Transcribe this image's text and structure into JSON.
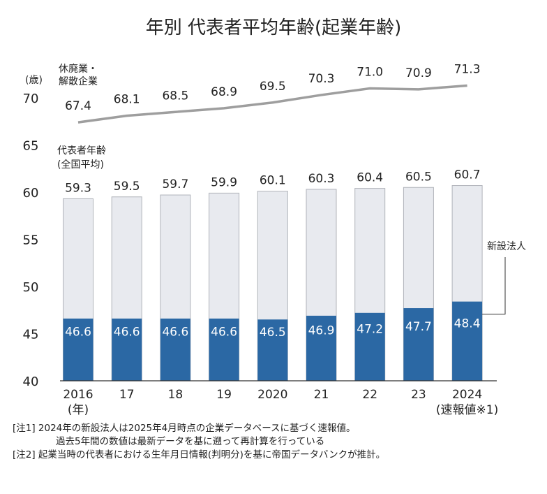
{
  "chart_data": {
    "type": "bar",
    "title": "年別 代表者平均年齢(起業年齢)",
    "y_unit": "(歳)",
    "ylim": [
      40,
      72
    ],
    "yticks": [
      40,
      45,
      50,
      55,
      60,
      65,
      70
    ],
    "categories": [
      "2016",
      "17",
      "18",
      "19",
      "2020",
      "21",
      "22",
      "23",
      "2024"
    ],
    "category_sublabels": [
      "(年)",
      "",
      "",
      "",
      "",
      "",
      "",
      "",
      "(速報値※1)"
    ],
    "series": [
      {
        "name": "休廃業・解散企業",
        "label_lines": [
          "休廃業・",
          "解散企業"
        ],
        "type": "line",
        "color": "#9e9e9e",
        "values": [
          67.4,
          68.1,
          68.5,
          68.9,
          69.5,
          70.3,
          71.0,
          70.9,
          71.3
        ],
        "labels": [
          "67.4",
          "68.1",
          "68.5",
          "68.9",
          "69.5",
          "70.3",
          "71.0",
          "70.9",
          "71.3"
        ]
      },
      {
        "name": "代表者年齢(全国平均)",
        "label_lines": [
          "代表者年齢",
          "(全国平均)"
        ],
        "type": "bar",
        "color": "#e8eaef",
        "stroke": "#b0b3ba",
        "values": [
          59.3,
          59.5,
          59.7,
          59.9,
          60.1,
          60.3,
          60.4,
          60.5,
          60.7
        ],
        "labels": [
          "59.3",
          "59.5",
          "59.7",
          "59.9",
          "60.1",
          "60.3",
          "60.4",
          "60.5",
          "60.7"
        ]
      },
      {
        "name": "新設法人",
        "label_lines": [
          "新設法人"
        ],
        "type": "bar",
        "color": "#2b68a4",
        "values": [
          46.6,
          46.6,
          46.6,
          46.6,
          46.5,
          46.9,
          47.2,
          47.7,
          48.4
        ],
        "labels": [
          "46.6",
          "46.6",
          "46.6",
          "46.6",
          "46.5",
          "46.9",
          "47.2",
          "47.7",
          "48.4"
        ]
      }
    ]
  },
  "notes": [
    "[注1] 2024年の新設法人は2025年4月時点の企業データベースに基づく速報値。",
    "過去5年間の数値は最新データを基に遡って再計算を行っている",
    "[注2] 起業当時の代表者における生年月日情報(判明分)を基に帝国データバンクが推計。"
  ]
}
